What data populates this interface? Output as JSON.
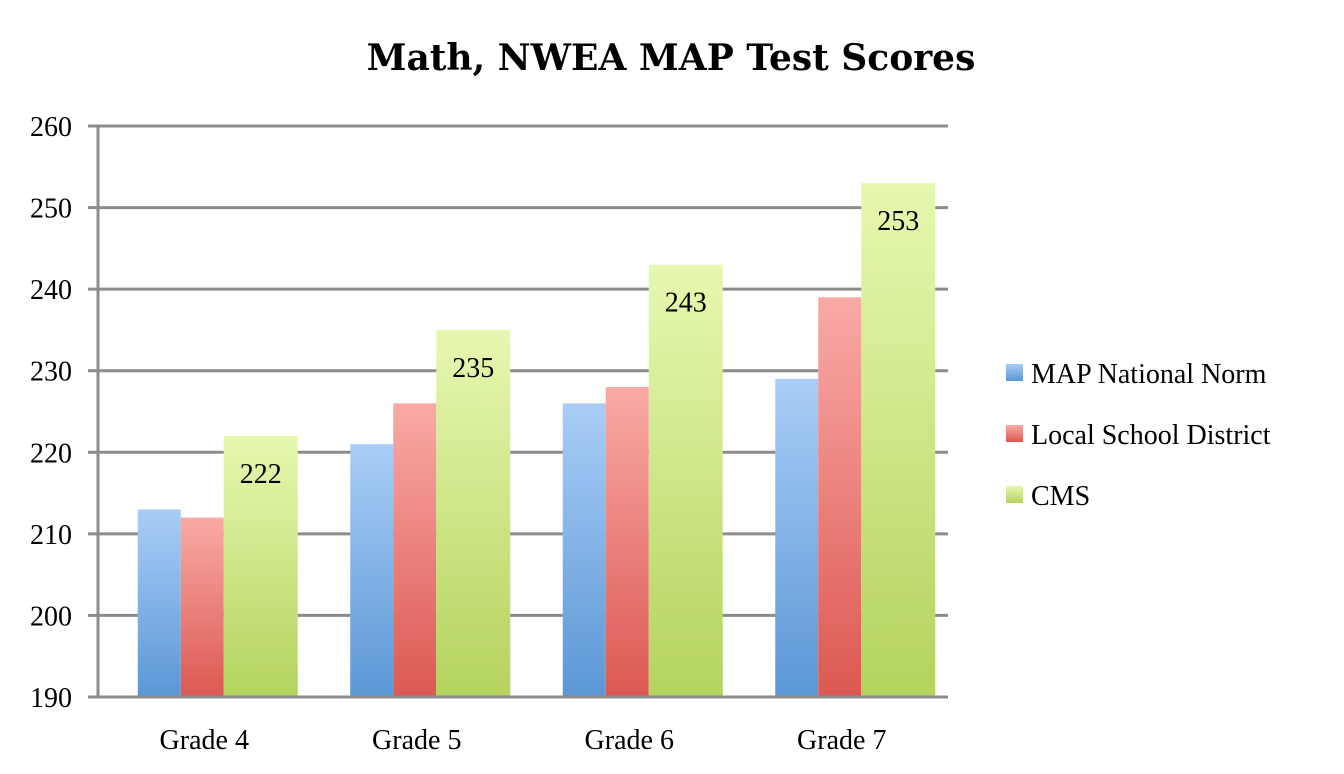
{
  "chart_data": {
    "type": "bar",
    "title": "Math, NWEA MAP Test Scores",
    "xlabel": "",
    "ylabel": "",
    "categories": [
      "Grade 4",
      "Grade 5",
      "Grade 6",
      "Grade 7"
    ],
    "series": [
      {
        "name": "MAP National Norm",
        "values": [
          213,
          221,
          226,
          229
        ],
        "color_top": "#a9cdf6",
        "color_bottom": "#5b97d6",
        "labels": false
      },
      {
        "name": "Local School District",
        "values": [
          212,
          226,
          228,
          239
        ],
        "color_top": "#f9aaa6",
        "color_bottom": "#dc5852",
        "labels": false
      },
      {
        "name": "CMS",
        "values": [
          222,
          235,
          243,
          253
        ],
        "color_top": "#e6f8b0",
        "color_bottom": "#b4d35e",
        "labels": true
      }
    ],
    "ylim": [
      190,
      260
    ],
    "yticks": [
      "190",
      "200",
      "210",
      "220",
      "230",
      "240",
      "250",
      "260"
    ],
    "grid": true,
    "legend_position": "right"
  }
}
